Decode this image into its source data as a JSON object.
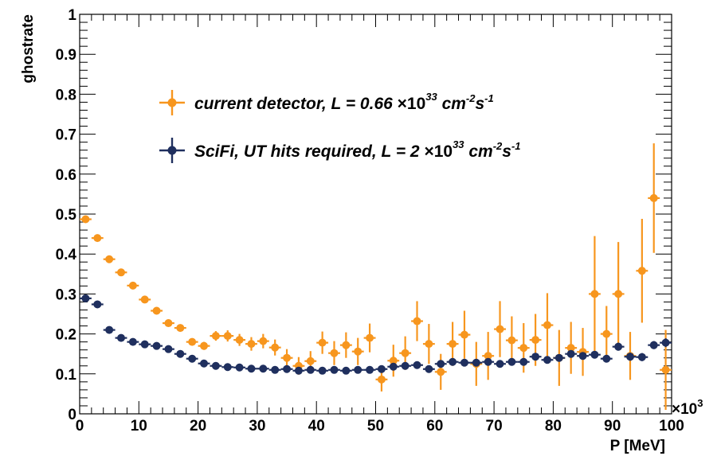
{
  "chart_data": {
    "type": "scatter",
    "title": "",
    "xlabel": "P [MeV]",
    "ylabel": "ghostrate",
    "x_multiplier_label": "×10",
    "x_multiplier_exp": "3",
    "xlim": [
      0,
      100
    ],
    "ylim": [
      0,
      1
    ],
    "x_ticks": [
      {
        "v": 0,
        "label": "0"
      },
      {
        "v": 10,
        "label": "10"
      },
      {
        "v": 20,
        "label": "20"
      },
      {
        "v": 30,
        "label": "30"
      },
      {
        "v": 40,
        "label": "40"
      },
      {
        "v": 50,
        "label": "50"
      },
      {
        "v": 60,
        "label": "60"
      },
      {
        "v": 70,
        "label": "70"
      },
      {
        "v": 80,
        "label": "80"
      },
      {
        "v": 90,
        "label": "90"
      },
      {
        "v": 100,
        "label": "100"
      }
    ],
    "y_ticks": [
      {
        "v": 0,
        "label": "0"
      },
      {
        "v": 0.1,
        "label": "0.1"
      },
      {
        "v": 0.2,
        "label": "0.2"
      },
      {
        "v": 0.3,
        "label": "0.3"
      },
      {
        "v": 0.4,
        "label": "0.4"
      },
      {
        "v": 0.5,
        "label": "0.5"
      },
      {
        "v": 0.6,
        "label": "0.6"
      },
      {
        "v": 0.7,
        "label": "0.7"
      },
      {
        "v": 0.8,
        "label": "0.8"
      },
      {
        "v": 0.9,
        "label": "0.9"
      },
      {
        "v": 1,
        "label": "1"
      }
    ],
    "grid": false,
    "legend_position": "top-left",
    "x_bin_half_width": 1,
    "series": [
      {
        "legend_text": "current detector, L = 0.66 ",
        "legend_times": "×10",
        "legend_exp": "33",
        "legend_unit_a": " cm",
        "legend_unit_a_exp": "-2",
        "legend_unit_b": "s",
        "legend_unit_b_exp": "-1",
        "color": "#f7961e",
        "x": [
          1,
          3,
          5,
          7,
          9,
          11,
          13,
          15,
          17,
          19,
          21,
          23,
          25,
          27,
          29,
          31,
          33,
          35,
          37,
          39,
          41,
          43,
          45,
          47,
          49,
          51,
          53,
          55,
          57,
          59,
          61,
          63,
          65,
          67,
          69,
          71,
          73,
          75,
          77,
          79,
          81,
          83,
          85,
          87,
          89,
          91,
          93,
          95,
          97,
          99
        ],
        "y": [
          0.487,
          0.44,
          0.387,
          0.354,
          0.321,
          0.286,
          0.258,
          0.227,
          0.215,
          0.18,
          0.17,
          0.195,
          0.195,
          0.185,
          0.175,
          0.182,
          0.166,
          0.14,
          0.12,
          0.132,
          0.178,
          0.152,
          0.172,
          0.156,
          0.19,
          0.086,
          0.133,
          0.152,
          0.232,
          0.175,
          0.105,
          0.175,
          0.198,
          0.125,
          0.145,
          0.212,
          0.184,
          0.165,
          0.185,
          0.222,
          0.14,
          0.165,
          0.155,
          0.3,
          0.2,
          0.3,
          0.145,
          0.358,
          0.54,
          0.11
        ],
        "yerr": [
          0.004,
          0.004,
          0.004,
          0.004,
          0.004,
          0.005,
          0.005,
          0.006,
          0.006,
          0.008,
          0.01,
          0.012,
          0.014,
          0.015,
          0.017,
          0.018,
          0.02,
          0.022,
          0.022,
          0.025,
          0.028,
          0.03,
          0.032,
          0.034,
          0.036,
          0.03,
          0.04,
          0.042,
          0.05,
          0.05,
          0.045,
          0.055,
          0.06,
          0.055,
          0.06,
          0.07,
          0.06,
          0.062,
          0.065,
          0.08,
          0.07,
          0.065,
          0.06,
          0.145,
          0.07,
          0.13,
          0.06,
          0.13,
          0.137,
          0.1
        ]
      },
      {
        "legend_text": "SciFi, UT hits required, L = 2 ",
        "legend_times": "×10",
        "legend_exp": "33",
        "legend_unit_a": " cm",
        "legend_unit_a_exp": "-2",
        "legend_unit_b": "s",
        "legend_unit_b_exp": "-1",
        "color": "#1f2f5e",
        "x": [
          1,
          3,
          5,
          7,
          9,
          11,
          13,
          15,
          17,
          19,
          21,
          23,
          25,
          27,
          29,
          31,
          33,
          35,
          37,
          39,
          41,
          43,
          45,
          47,
          49,
          51,
          53,
          55,
          57,
          59,
          61,
          63,
          65,
          67,
          69,
          71,
          73,
          75,
          77,
          79,
          81,
          83,
          85,
          87,
          89,
          91,
          93,
          95,
          97,
          99
        ],
        "y": [
          0.289,
          0.274,
          0.21,
          0.19,
          0.18,
          0.174,
          0.17,
          0.162,
          0.15,
          0.138,
          0.126,
          0.12,
          0.117,
          0.116,
          0.113,
          0.113,
          0.11,
          0.112,
          0.108,
          0.11,
          0.108,
          0.11,
          0.108,
          0.11,
          0.11,
          0.112,
          0.118,
          0.12,
          0.122,
          0.112,
          0.125,
          0.13,
          0.128,
          0.128,
          0.13,
          0.125,
          0.13,
          0.13,
          0.143,
          0.135,
          0.14,
          0.15,
          0.145,
          0.148,
          0.138,
          0.168,
          0.143,
          0.142,
          0.172,
          0.178
        ],
        "yerr": [
          0.003,
          0.003,
          0.003,
          0.003,
          0.003,
          0.003,
          0.003,
          0.003,
          0.003,
          0.003,
          0.003,
          0.003,
          0.003,
          0.003,
          0.003,
          0.003,
          0.003,
          0.003,
          0.004,
          0.004,
          0.004,
          0.004,
          0.004,
          0.004,
          0.004,
          0.004,
          0.005,
          0.005,
          0.005,
          0.005,
          0.006,
          0.006,
          0.006,
          0.006,
          0.006,
          0.007,
          0.007,
          0.007,
          0.008,
          0.008,
          0.008,
          0.008,
          0.009,
          0.009,
          0.009,
          0.01,
          0.01,
          0.01,
          0.01,
          0.011
        ]
      }
    ]
  }
}
